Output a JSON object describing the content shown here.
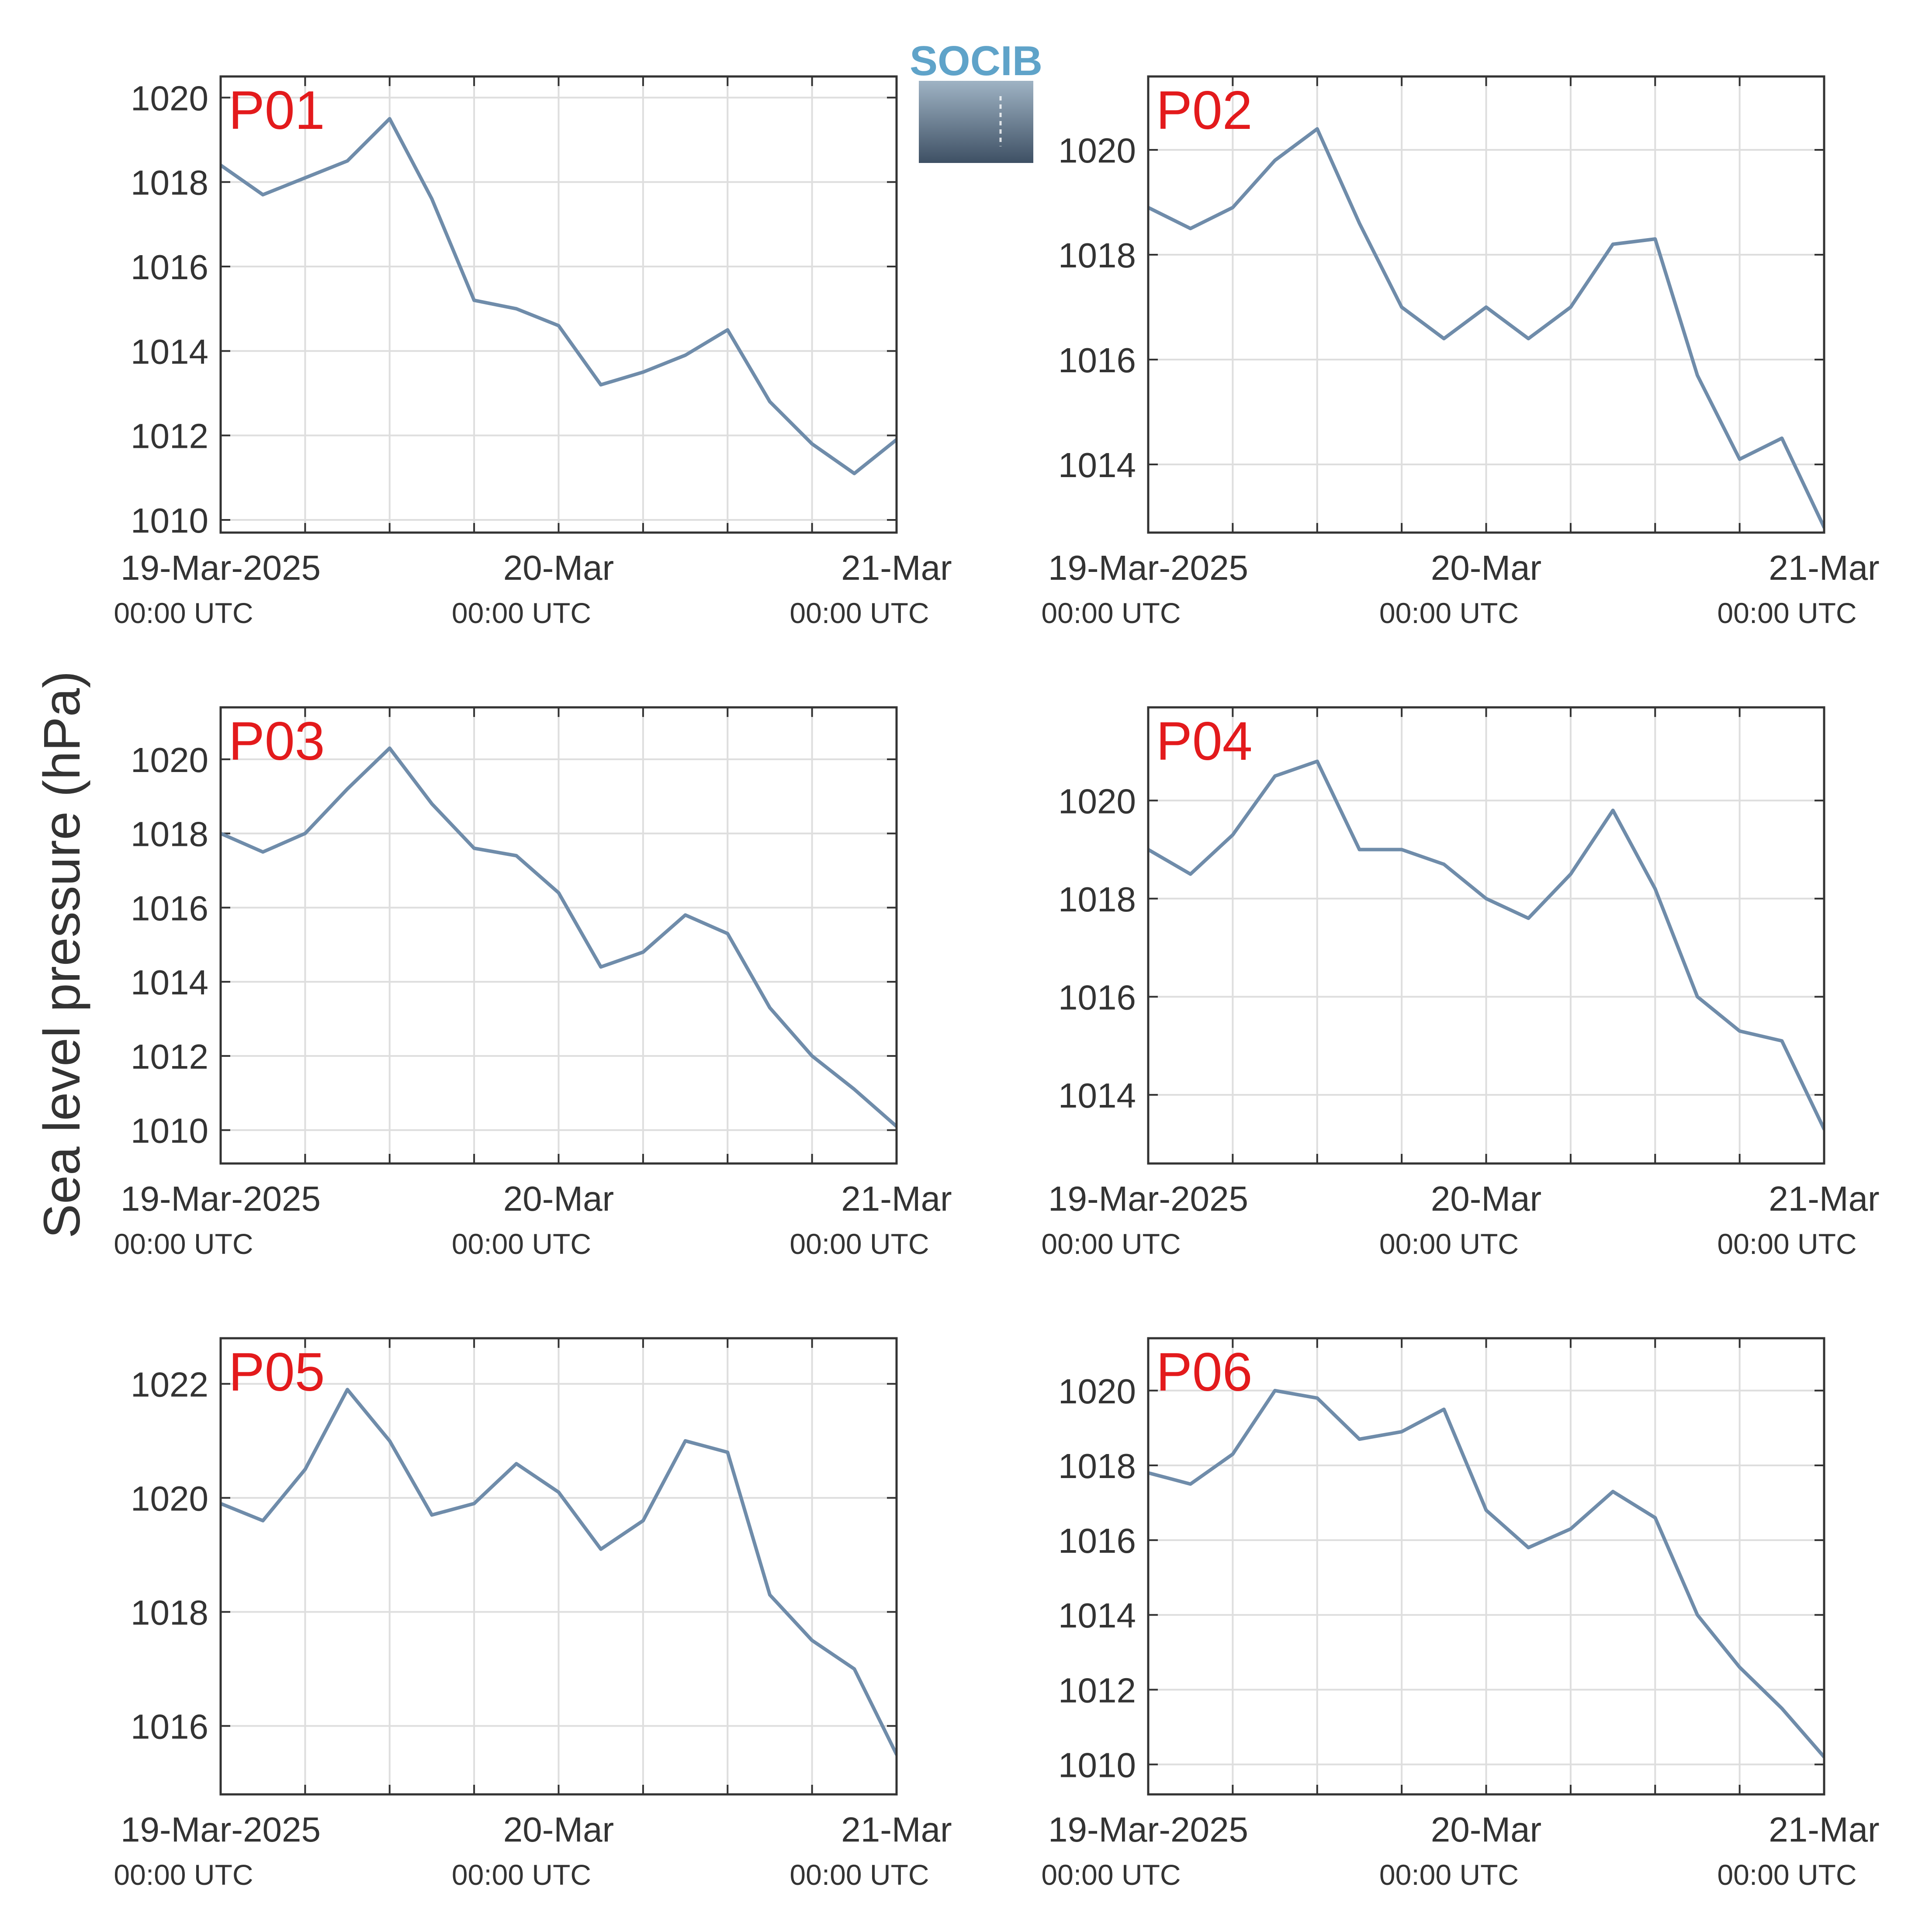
{
  "figure": {
    "ylabel": "Sea level pressure (hPa)",
    "line_color": "#6f8caa",
    "label_color": "#e31a1c",
    "grid": true
  },
  "logo": {
    "text": "SOCIB",
    "text_color": "#5fa3c9",
    "gradient_top": "#9fb3c4",
    "gradient_bottom": "#3e5064"
  },
  "x_axis": {
    "range": [
      "2025-03-19 00:00",
      "2025-03-21 00:00"
    ],
    "tick_labels": [
      "19-Mar-2025",
      "20-Mar",
      "21-Mar"
    ],
    "tick_sublabels": [
      "00:00 UTC",
      "00:00 UTC",
      "00:00 UTC"
    ]
  },
  "chart_data": [
    {
      "type": "line",
      "label": "P01",
      "ylim": [
        1009.7,
        1020.5
      ],
      "yticks": [
        1010,
        1012,
        1014,
        1016,
        1018,
        1020
      ],
      "x": [
        "2025-03-19 00:00",
        "2025-03-19 03:00",
        "2025-03-19 06:00",
        "2025-03-19 09:00",
        "2025-03-19 12:00",
        "2025-03-19 15:00",
        "2025-03-19 18:00",
        "2025-03-19 21:00",
        "2025-03-20 00:00",
        "2025-03-20 03:00",
        "2025-03-20 06:00",
        "2025-03-20 09:00",
        "2025-03-20 12:00",
        "2025-03-20 15:00",
        "2025-03-20 18:00",
        "2025-03-20 21:00",
        "2025-03-21 00:00"
      ],
      "values": [
        1018.4,
        1017.7,
        1018.1,
        1018.5,
        1019.5,
        1017.6,
        1015.2,
        1015.0,
        1014.6,
        1013.2,
        1013.5,
        1013.9,
        1014.5,
        1012.8,
        1011.8,
        1011.1,
        1011.9
      ]
    },
    {
      "type": "line",
      "label": "P02",
      "ylim": [
        1012.7,
        1021.4
      ],
      "yticks": [
        1014,
        1016,
        1018,
        1020
      ],
      "x": [
        "2025-03-19 00:00",
        "2025-03-19 03:00",
        "2025-03-19 06:00",
        "2025-03-19 09:00",
        "2025-03-19 12:00",
        "2025-03-19 15:00",
        "2025-03-19 18:00",
        "2025-03-19 21:00",
        "2025-03-20 00:00",
        "2025-03-20 03:00",
        "2025-03-20 06:00",
        "2025-03-20 09:00",
        "2025-03-20 12:00",
        "2025-03-20 15:00",
        "2025-03-20 18:00",
        "2025-03-20 21:00",
        "2025-03-21 00:00"
      ],
      "values": [
        1018.9,
        1018.5,
        1018.9,
        1019.8,
        1020.4,
        1018.6,
        1017.0,
        1016.4,
        1017.0,
        1016.4,
        1017.0,
        1018.2,
        1018.3,
        1015.7,
        1014.1,
        1014.5,
        1012.8
      ]
    },
    {
      "type": "line",
      "label": "P03",
      "ylim": [
        1009.1,
        1021.4
      ],
      "yticks": [
        1010,
        1012,
        1014,
        1016,
        1018,
        1020
      ],
      "x": [
        "2025-03-19 00:00",
        "2025-03-19 03:00",
        "2025-03-19 06:00",
        "2025-03-19 09:00",
        "2025-03-19 12:00",
        "2025-03-19 15:00",
        "2025-03-19 18:00",
        "2025-03-19 21:00",
        "2025-03-20 00:00",
        "2025-03-20 03:00",
        "2025-03-20 06:00",
        "2025-03-20 09:00",
        "2025-03-20 12:00",
        "2025-03-20 15:00",
        "2025-03-20 18:00",
        "2025-03-20 21:00",
        "2025-03-21 00:00"
      ],
      "values": [
        1018.0,
        1017.5,
        1018.0,
        1019.2,
        1020.3,
        1018.8,
        1017.6,
        1017.4,
        1016.4,
        1014.4,
        1014.8,
        1015.8,
        1015.3,
        1013.3,
        1012.0,
        1011.1,
        1010.1
      ]
    },
    {
      "type": "line",
      "label": "P04",
      "ylim": [
        1012.6,
        1021.9
      ],
      "yticks": [
        1014,
        1016,
        1018,
        1020
      ],
      "x": [
        "2025-03-19 00:00",
        "2025-03-19 03:00",
        "2025-03-19 06:00",
        "2025-03-19 09:00",
        "2025-03-19 12:00",
        "2025-03-19 15:00",
        "2025-03-19 18:00",
        "2025-03-19 21:00",
        "2025-03-20 00:00",
        "2025-03-20 03:00",
        "2025-03-20 06:00",
        "2025-03-20 09:00",
        "2025-03-20 12:00",
        "2025-03-20 15:00",
        "2025-03-20 18:00",
        "2025-03-20 21:00",
        "2025-03-21 00:00"
      ],
      "values": [
        1019.0,
        1018.5,
        1019.3,
        1020.5,
        1020.8,
        1019.0,
        1019.0,
        1018.7,
        1018.0,
        1017.6,
        1018.5,
        1019.8,
        1018.2,
        1016.0,
        1015.3,
        1015.1,
        1013.3
      ]
    },
    {
      "type": "line",
      "label": "P05",
      "ylim": [
        1014.8,
        1022.8
      ],
      "yticks": [
        1016,
        1018,
        1020,
        1022
      ],
      "x": [
        "2025-03-19 00:00",
        "2025-03-19 03:00",
        "2025-03-19 06:00",
        "2025-03-19 09:00",
        "2025-03-19 12:00",
        "2025-03-19 15:00",
        "2025-03-19 18:00",
        "2025-03-19 21:00",
        "2025-03-20 00:00",
        "2025-03-20 03:00",
        "2025-03-20 06:00",
        "2025-03-20 09:00",
        "2025-03-20 12:00",
        "2025-03-20 15:00",
        "2025-03-20 18:00",
        "2025-03-20 21:00",
        "2025-03-21 00:00"
      ],
      "values": [
        1019.9,
        1019.6,
        1020.5,
        1021.9,
        1021.0,
        1019.7,
        1019.9,
        1020.6,
        1020.1,
        1019.1,
        1019.6,
        1021.0,
        1020.8,
        1018.3,
        1017.5,
        1017.0,
        1015.5
      ]
    },
    {
      "type": "line",
      "label": "P06",
      "ylim": [
        1009.2,
        1021.4
      ],
      "yticks": [
        1010,
        1012,
        1014,
        1016,
        1018,
        1020
      ],
      "x": [
        "2025-03-19 00:00",
        "2025-03-19 03:00",
        "2025-03-19 06:00",
        "2025-03-19 09:00",
        "2025-03-19 12:00",
        "2025-03-19 15:00",
        "2025-03-19 18:00",
        "2025-03-19 21:00",
        "2025-03-20 00:00",
        "2025-03-20 03:00",
        "2025-03-20 06:00",
        "2025-03-20 09:00",
        "2025-03-20 12:00",
        "2025-03-20 15:00",
        "2025-03-20 18:00",
        "2025-03-20 21:00",
        "2025-03-21 00:00"
      ],
      "values": [
        1017.8,
        1017.5,
        1018.3,
        1020.0,
        1019.8,
        1018.7,
        1018.9,
        1019.5,
        1016.8,
        1015.8,
        1016.3,
        1017.3,
        1016.6,
        1014.0,
        1012.6,
        1011.5,
        1010.2
      ]
    }
  ]
}
